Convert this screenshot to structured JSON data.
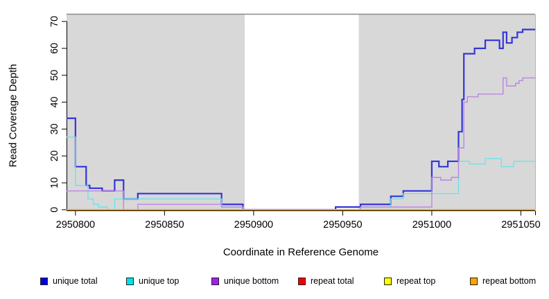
{
  "chart_data": {
    "type": "line",
    "subtype": "step-coverage-plot",
    "title": "",
    "xlabel": "Coordinate in Reference Genome",
    "ylabel": "Read Coverage Depth",
    "xlim": [
      2950795,
      2951058
    ],
    "ylim": [
      0,
      71
    ],
    "x_ticks": [
      2950800,
      2950850,
      2950900,
      2950950,
      2951000,
      2951050
    ],
    "y_ticks": [
      0,
      10,
      20,
      30,
      40,
      50,
      60,
      70
    ],
    "grid": false,
    "legend_position": "bottom",
    "panel_bg": "#d8d8d8",
    "panel_border_top": "#8a8a8a",
    "panel_border_right": "#b4b4b4",
    "masked_region": {
      "start": 2950895,
      "end": 2950959,
      "color": "#ffffff"
    },
    "series": [
      {
        "name": "unique total",
        "color": "#3434d8",
        "legend_color": "#0000dd",
        "line_width": 2.2,
        "points": [
          [
            2950795,
            34
          ],
          [
            2950800,
            16
          ],
          [
            2950806,
            9
          ],
          [
            2950808,
            8
          ],
          [
            2950815,
            7
          ],
          [
            2950822,
            11
          ],
          [
            2950827,
            4
          ],
          [
            2950835,
            6
          ],
          [
            2950882,
            2
          ],
          [
            2950894,
            0
          ],
          [
            2950946,
            1
          ],
          [
            2950960,
            2
          ],
          [
            2950977,
            5
          ],
          [
            2950984,
            7
          ],
          [
            2951000,
            18
          ],
          [
            2951004,
            16
          ],
          [
            2951009,
            18
          ],
          [
            2951015,
            29
          ],
          [
            2951017,
            41
          ],
          [
            2951018,
            58
          ],
          [
            2951024,
            60
          ],
          [
            2951030,
            63
          ],
          [
            2951038,
            60
          ],
          [
            2951040,
            66
          ],
          [
            2951042,
            62
          ],
          [
            2951045,
            64
          ],
          [
            2951048,
            66
          ],
          [
            2951051,
            67
          ],
          [
            2951058,
            67
          ]
        ]
      },
      {
        "name": "unique top",
        "color": "#6ae4ea",
        "legend_color": "#00e0ea",
        "line_width": 1.4,
        "points": [
          [
            2950795,
            27
          ],
          [
            2950800,
            9
          ],
          [
            2950807,
            4
          ],
          [
            2950810,
            2
          ],
          [
            2950813,
            1
          ],
          [
            2950818,
            0
          ],
          [
            2950822,
            4
          ],
          [
            2950882,
            1
          ],
          [
            2950894,
            0
          ],
          [
            2950960,
            1
          ],
          [
            2950977,
            4
          ],
          [
            2950984,
            6
          ],
          [
            2951015,
            18
          ],
          [
            2951021,
            17
          ],
          [
            2951030,
            19
          ],
          [
            2951039,
            16
          ],
          [
            2951046,
            18
          ],
          [
            2951058,
            18
          ]
        ]
      },
      {
        "name": "unique bottom",
        "color": "#bd84e4",
        "legend_color": "#a020f0",
        "line_width": 1.4,
        "points": [
          [
            2950795,
            7
          ],
          [
            2950827,
            0
          ],
          [
            2950835,
            2
          ],
          [
            2950882,
            1
          ],
          [
            2950894,
            0
          ],
          [
            2950960,
            1
          ],
          [
            2951000,
            12
          ],
          [
            2951005,
            11
          ],
          [
            2951011,
            12
          ],
          [
            2951015,
            23
          ],
          [
            2951018,
            40
          ],
          [
            2951020,
            42
          ],
          [
            2951026,
            43
          ],
          [
            2951040,
            49
          ],
          [
            2951042,
            46
          ],
          [
            2951047,
            47
          ],
          [
            2951049,
            48
          ],
          [
            2951051,
            49
          ],
          [
            2951058,
            49
          ]
        ]
      },
      {
        "name": "repeat total",
        "color": "#e00000",
        "legend_color": "#ee0000",
        "line_width": 1.4,
        "points": [
          [
            2950795,
            0
          ],
          [
            2951058,
            0
          ]
        ]
      },
      {
        "name": "repeat top",
        "color": "#f8f800",
        "legend_color": "#ffff00",
        "line_width": 1.4,
        "points": [
          [
            2950795,
            0
          ],
          [
            2951058,
            0
          ]
        ]
      },
      {
        "name": "repeat bottom",
        "color": "#ffa300",
        "legend_color": "#ffa500",
        "line_width": 1.7,
        "points": [
          [
            2950795,
            0
          ],
          [
            2951058,
            0
          ]
        ]
      }
    ],
    "legend": {
      "entries": [
        {
          "label": "unique total",
          "color": "#0000dd"
        },
        {
          "label": "unique top",
          "color": "#00e0ea"
        },
        {
          "label": "unique bottom",
          "color": "#a020f0"
        },
        {
          "label": "repeat total",
          "color": "#ee0000"
        },
        {
          "label": "repeat top",
          "color": "#ffff00"
        },
        {
          "label": "repeat bottom",
          "color": "#ffa500"
        }
      ]
    }
  }
}
